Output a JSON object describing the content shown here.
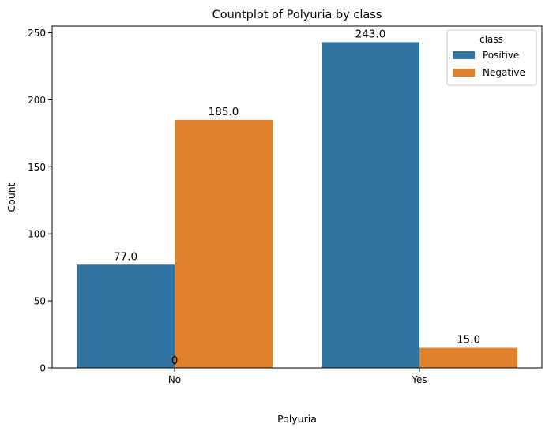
{
  "chart_data": {
    "type": "bar",
    "title": "Countplot of Polyuria by class",
    "xlabel": "Polyuria",
    "ylabel": "Count",
    "categories": [
      "No",
      "Yes"
    ],
    "series": [
      {
        "name": "Positive",
        "values": [
          77,
          243
        ],
        "color": "#3274a1",
        "labels": [
          "77.0",
          "243.0"
        ]
      },
      {
        "name": "Negative",
        "values": [
          185,
          15
        ],
        "color": "#e1812c",
        "labels": [
          "185.0",
          "15.0"
        ]
      }
    ],
    "extra_annotation": {
      "text": "0",
      "x": "No",
      "y": 0
    },
    "ylim": [
      0,
      255
    ],
    "yticks": [
      0,
      50,
      100,
      150,
      200,
      250
    ],
    "grid": false,
    "legend": {
      "title": "class",
      "placement": "top-right"
    }
  }
}
